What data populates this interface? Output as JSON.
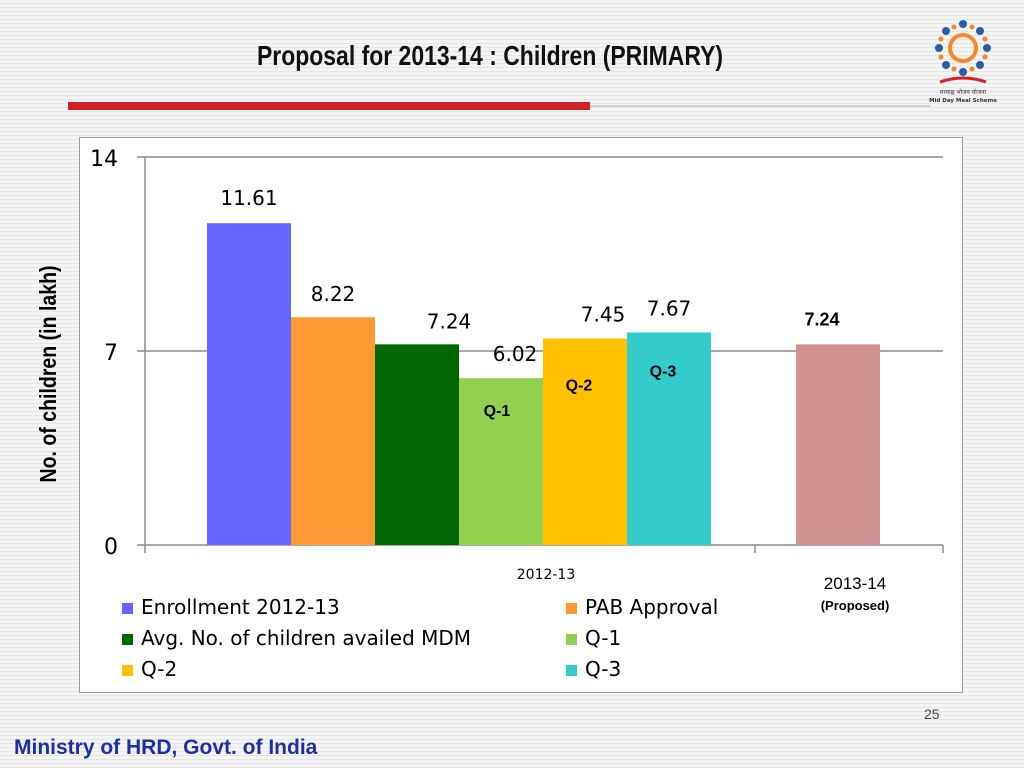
{
  "slide": {
    "title": "Proposal for 2013-14 : Children (PRIMARY)",
    "footer": "Ministry of HRD, Govt. of India",
    "page_number": "25",
    "logo_text_line1": "मध्याह्न भोजन योजना",
    "logo_text_line2": "Mid Day Meal Scheme"
  },
  "chart_data": {
    "type": "bar",
    "ylabel": "No. of children (in lakh)",
    "ylim": [
      0,
      14
    ],
    "yticks": [
      0,
      7,
      14
    ],
    "grid": true,
    "legend_position": "bottom",
    "groups": [
      {
        "label": "2012-13",
        "bars": [
          {
            "series": "Enrollment 2012-13",
            "value": 11.61,
            "label": "11.61",
            "color": "#6666ff"
          },
          {
            "series": "PAB Approval",
            "value": 8.22,
            "label": "8.22",
            "color": "#ff9933"
          },
          {
            "series": "Avg. No. of children availed MDM",
            "value": 7.24,
            "label": "7.24",
            "color": "#006600"
          },
          {
            "series": "Q-1",
            "value": 6.02,
            "label": "6.02",
            "color": "#92d050",
            "inner_label": "Q-1"
          },
          {
            "series": "Q-2",
            "value": 7.45,
            "label": "7.45",
            "color": "#ffc000",
            "inner_label": "Q-2"
          },
          {
            "series": "Q-3",
            "value": 7.67,
            "label": "7.67",
            "color": "#33cccc",
            "inner_label": "Q-3"
          }
        ]
      },
      {
        "label": "2013-14",
        "sublabel": "(Proposed)",
        "bars": [
          {
            "series": "",
            "value": 7.24,
            "label": "7.24",
            "color": "#d09090"
          }
        ]
      }
    ],
    "legend": [
      {
        "name": "Enrollment 2012-13",
        "color": "#6666ff"
      },
      {
        "name": "PAB Approval",
        "color": "#ff9933"
      },
      {
        "name": "Avg. No. of children availed MDM",
        "color": "#006600"
      },
      {
        "name": "Q-1",
        "color": "#92d050"
      },
      {
        "name": "Q-2",
        "color": "#ffc000"
      },
      {
        "name": "Q-3",
        "color": "#33cccc"
      }
    ]
  }
}
